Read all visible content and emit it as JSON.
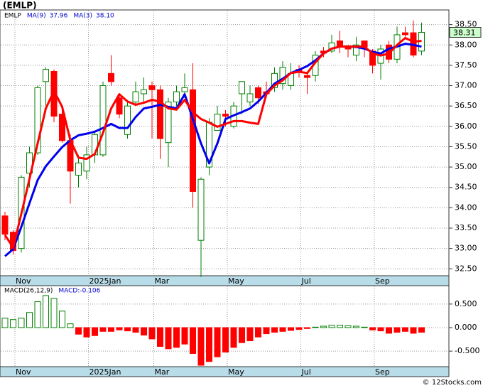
{
  "title": "(EMLP)",
  "footer": "© 12Stocks.com",
  "chart_data": [
    {
      "type": "candlestick",
      "categories": [
        null,
        null,
        "Nov",
        null,
        null,
        null,
        null,
        null,
        null,
        null,
        null,
        "2025Jan",
        null,
        null,
        null,
        null,
        null,
        null,
        null,
        "Mar",
        null,
        null,
        null,
        null,
        null,
        null,
        null,
        null,
        "May",
        null,
        null,
        null,
        null,
        null,
        null,
        null,
        null,
        "Jul",
        null,
        null,
        null,
        null,
        null,
        null,
        null,
        null,
        "Sep",
        null,
        null,
        null,
        null,
        null
      ],
      "symbol": "EMLP",
      "open": [
        33.8,
        33.4,
        33.0,
        34.85,
        35.35,
        37.1,
        37.35,
        36.3,
        35.65,
        34.8,
        34.9,
        35.3,
        35.3,
        37.3,
        36.7,
        35.8,
        36.6,
        36.8,
        37.0,
        36.9,
        35.6,
        36.6,
        36.85,
        36.9,
        33.2,
        35.0,
        35.9,
        36.3,
        36.0,
        36.8,
        36.6,
        36.95,
        36.85,
        36.95,
        37.05,
        37.0,
        37.4,
        37.25,
        37.25,
        37.85,
        37.85,
        38.1,
        37.95,
        37.75,
        38.1,
        37.85,
        37.55,
        38.0,
        37.65,
        38.3,
        38.3,
        37.85
      ],
      "high": [
        33.9,
        33.45,
        34.8,
        35.5,
        37.0,
        37.45,
        37.4,
        36.4,
        35.8,
        35.3,
        35.5,
        35.9,
        37.1,
        37.75,
        36.8,
        36.65,
        37.1,
        37.2,
        37.1,
        37.0,
        36.7,
        37.0,
        37.3,
        37.55,
        34.75,
        36.2,
        36.5,
        36.4,
        36.6,
        37.1,
        37.0,
        37.0,
        37.1,
        37.45,
        37.6,
        37.55,
        37.5,
        37.3,
        37.85,
        37.95,
        38.25,
        38.35,
        38.0,
        38.2,
        38.1,
        37.9,
        38.0,
        38.1,
        38.45,
        38.45,
        38.6,
        38.55
      ],
      "low": [
        33.2,
        32.85,
        32.9,
        34.5,
        35.3,
        36.5,
        36.1,
        35.6,
        34.1,
        34.5,
        34.7,
        35.1,
        35.25,
        37.0,
        36.2,
        35.7,
        36.5,
        36.6,
        35.7,
        35.2,
        35.0,
        36.5,
        36.7,
        34.0,
        32.3,
        34.8,
        35.9,
        36.0,
        35.95,
        36.3,
        36.5,
        36.55,
        36.7,
        36.85,
        36.9,
        36.9,
        37.2,
        36.8,
        37.1,
        37.7,
        37.8,
        37.8,
        37.7,
        37.6,
        37.7,
        37.3,
        37.15,
        37.55,
        37.55,
        38.2,
        37.7,
        37.75
      ],
      "close": [
        33.35,
        32.95,
        34.75,
        35.35,
        36.95,
        37.4,
        36.25,
        35.65,
        34.9,
        35.1,
        35.3,
        35.8,
        37.0,
        37.1,
        36.3,
        36.5,
        36.85,
        36.9,
        36.9,
        35.7,
        36.6,
        36.85,
        36.95,
        34.4,
        34.7,
        36.1,
        36.3,
        36.25,
        36.5,
        37.1,
        36.8,
        36.7,
        36.8,
        37.3,
        37.45,
        37.3,
        37.35,
        37.2,
        37.75,
        37.8,
        38.05,
        37.95,
        37.9,
        38.0,
        37.95,
        37.5,
        37.9,
        37.65,
        38.25,
        38.25,
        37.75,
        38.31
      ],
      "up_color": "#008000",
      "down_color": "#ff0000",
      "series": [
        {
          "name": "MA(9)",
          "legend_value": "37.96",
          "color": "#0000ee",
          "values": [
            32.81,
            32.98,
            33.53,
            34.11,
            34.68,
            35.02,
            35.26,
            35.49,
            35.66,
            35.78,
            35.82,
            35.87,
            35.96,
            36.06,
            35.96,
            35.96,
            36.23,
            36.44,
            36.48,
            36.53,
            36.48,
            36.44,
            36.79,
            36.18,
            35.58,
            35.09,
            35.58,
            36.18,
            36.27,
            36.35,
            36.44,
            36.61,
            36.82,
            37.05,
            37.17,
            37.31,
            37.39,
            37.48,
            37.62,
            37.79,
            37.91,
            37.96,
            37.96,
            37.95,
            37.91,
            37.83,
            37.79,
            37.91,
            37.96,
            38.03,
            38.0,
            37.96
          ]
        },
        {
          "name": "MA(3)",
          "legend_value": "38.10",
          "color": "#ff0000",
          "values": [
            33.33,
            33.02,
            33.85,
            34.71,
            35.58,
            36.44,
            36.87,
            36.48,
            35.66,
            35.23,
            35.2,
            35.32,
            35.84,
            36.44,
            36.79,
            36.61,
            36.53,
            36.58,
            36.65,
            36.61,
            36.44,
            36.41,
            36.65,
            36.35,
            36.18,
            36.09,
            35.99,
            36.06,
            36.13,
            36.13,
            36.09,
            36.06,
            36.79,
            37.0,
            37.13,
            37.31,
            37.34,
            37.31,
            37.57,
            37.79,
            37.91,
            37.96,
            37.96,
            37.96,
            37.96,
            37.79,
            37.74,
            37.79,
            38.0,
            38.17,
            38.08,
            38.1
          ]
        }
      ],
      "ylim": [
        32.33,
        38.86
      ],
      "yticks": [
        {
          "value": 32.5,
          "label": "32.50"
        },
        {
          "value": 33,
          "label": "33.00"
        },
        {
          "value": 33.5,
          "label": "33.50"
        },
        {
          "value": 34,
          "label": "34.00"
        },
        {
          "value": 34.5,
          "label": "34.50"
        },
        {
          "value": 35,
          "label": "35.00"
        },
        {
          "value": 35.5,
          "label": "35.50"
        },
        {
          "value": 36,
          "label": "36.00"
        },
        {
          "value": 36.5,
          "label": "36.50"
        },
        {
          "value": 37,
          "label": "37.00"
        },
        {
          "value": 37.5,
          "label": "37.50"
        },
        {
          "value": 38,
          "label": "38.00"
        },
        {
          "value": 38.5,
          "label": "38.50"
        }
      ],
      "grid": true
    },
    {
      "type": "bar",
      "name": "MACD(26,12,9)",
      "legend_value": "MACD:-0.106",
      "categories": [
        null,
        null,
        "Nov",
        null,
        null,
        null,
        null,
        null,
        null,
        null,
        null,
        "2025Jan",
        null,
        null,
        null,
        null,
        null,
        null,
        null,
        "Mar",
        null,
        null,
        null,
        null,
        null,
        null,
        null,
        null,
        "May",
        null,
        null,
        null,
        null,
        null,
        null,
        null,
        null,
        "Jul",
        null,
        null,
        null,
        null,
        null,
        null,
        null,
        null,
        "Sep",
        null,
        null,
        null,
        null,
        null
      ],
      "values": [
        0.2,
        0.17,
        0.2,
        0.32,
        0.55,
        0.68,
        0.62,
        0.35,
        0.08,
        -0.14,
        -0.2,
        -0.17,
        -0.08,
        -0.08,
        -0.05,
        -0.07,
        -0.1,
        -0.16,
        -0.24,
        -0.4,
        -0.45,
        -0.42,
        -0.35,
        -0.55,
        -0.8,
        -0.72,
        -0.62,
        -0.52,
        -0.42,
        -0.32,
        -0.28,
        -0.2,
        -0.13,
        -0.1,
        -0.08,
        -0.06,
        -0.04,
        -0.02,
        0.01,
        0.03,
        0.05,
        0.05,
        0.04,
        0.03,
        0.01,
        -0.05,
        -0.07,
        -0.12,
        -0.1,
        -0.08,
        -0.12,
        -0.1
      ],
      "up_color": "#008000",
      "down_color": "#ff0000",
      "ylim": [
        -0.83,
        0.89
      ],
      "yticks": [
        {
          "value": -0.5,
          "label": "-0.500"
        },
        {
          "value": 0,
          "label": "0.000"
        },
        {
          "value": 0.5,
          "label": "0.500"
        }
      ],
      "grid": true
    }
  ]
}
